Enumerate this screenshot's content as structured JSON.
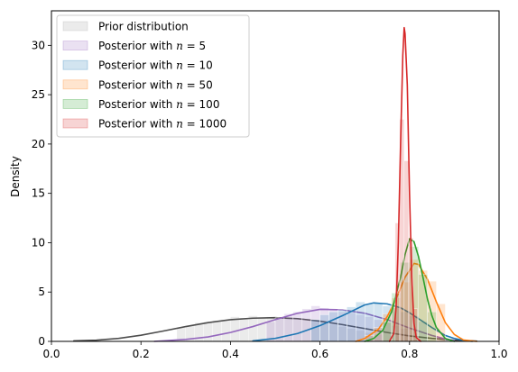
{
  "chart_data": {
    "type": "area",
    "title": "",
    "xlabel": "",
    "ylabel": "Density",
    "xlim": [
      0.0,
      1.0
    ],
    "ylim": [
      0,
      33.5
    ],
    "xticks": [
      "0.0",
      "0.2",
      "0.4",
      "0.6",
      "0.8",
      "1.0"
    ],
    "yticks": [
      "0",
      "5",
      "10",
      "15",
      "20",
      "25",
      "30"
    ],
    "legend_position": "top-left",
    "grid": false,
    "series": [
      {
        "name": "Prior distribution",
        "legend_prefix": "Prior distribution",
        "legend_n": "",
        "line_color": "#4d4d4d",
        "fill_color": "#b0b0b0",
        "kde": [
          [
            0.05,
            0.05
          ],
          [
            0.1,
            0.12
          ],
          [
            0.15,
            0.3
          ],
          [
            0.2,
            0.62
          ],
          [
            0.25,
            1.05
          ],
          [
            0.3,
            1.5
          ],
          [
            0.35,
            1.9
          ],
          [
            0.4,
            2.2
          ],
          [
            0.45,
            2.35
          ],
          [
            0.5,
            2.4
          ],
          [
            0.55,
            2.3
          ],
          [
            0.6,
            2.05
          ],
          [
            0.65,
            1.7
          ],
          [
            0.7,
            1.3
          ],
          [
            0.75,
            0.9
          ],
          [
            0.8,
            0.55
          ],
          [
            0.85,
            0.3
          ],
          [
            0.9,
            0.12
          ],
          [
            0.95,
            0.03
          ]
        ],
        "bins": [
          [
            0.28,
            0.3,
            1.4
          ],
          [
            0.3,
            0.32,
            1.6
          ],
          [
            0.32,
            0.34,
            1.9
          ],
          [
            0.34,
            0.36,
            2.0
          ],
          [
            0.36,
            0.38,
            2.1
          ],
          [
            0.38,
            0.4,
            2.2
          ],
          [
            0.4,
            0.42,
            2.5
          ],
          [
            0.42,
            0.44,
            2.4
          ],
          [
            0.44,
            0.46,
            2.6
          ],
          [
            0.46,
            0.48,
            2.4
          ],
          [
            0.48,
            0.5,
            2.5
          ],
          [
            0.5,
            0.52,
            2.3
          ],
          [
            0.52,
            0.54,
            2.4
          ],
          [
            0.54,
            0.56,
            2.2
          ],
          [
            0.56,
            0.58,
            2.1
          ],
          [
            0.58,
            0.6,
            2.0
          ],
          [
            0.6,
            0.62,
            1.9
          ],
          [
            0.62,
            0.64,
            1.7
          ],
          [
            0.64,
            0.66,
            1.5
          ],
          [
            0.66,
            0.68,
            1.3
          ],
          [
            0.68,
            0.7,
            1.1
          ],
          [
            0.7,
            0.72,
            0.9
          ],
          [
            0.72,
            0.74,
            0.7
          ]
        ]
      },
      {
        "name": "Posterior with n = 5",
        "legend_prefix": "Posterior with ",
        "legend_n": "5",
        "line_color": "#9467bd",
        "fill_color": "#9467bd",
        "kde": [
          [
            0.23,
            0.0
          ],
          [
            0.3,
            0.2
          ],
          [
            0.35,
            0.45
          ],
          [
            0.4,
            0.9
          ],
          [
            0.45,
            1.5
          ],
          [
            0.5,
            2.2
          ],
          [
            0.55,
            2.85
          ],
          [
            0.6,
            3.25
          ],
          [
            0.65,
            3.2
          ],
          [
            0.7,
            2.85
          ],
          [
            0.75,
            2.2
          ],
          [
            0.8,
            1.35
          ],
          [
            0.85,
            0.6
          ],
          [
            0.88,
            0.25
          ],
          [
            0.9,
            0.1
          ]
        ],
        "bins": [
          [
            0.48,
            0.5,
            2.0
          ],
          [
            0.5,
            0.52,
            2.4
          ],
          [
            0.52,
            0.54,
            2.8
          ],
          [
            0.54,
            0.56,
            3.0
          ],
          [
            0.56,
            0.58,
            3.3
          ],
          [
            0.58,
            0.6,
            3.6
          ],
          [
            0.6,
            0.62,
            3.4
          ],
          [
            0.62,
            0.64,
            3.2
          ],
          [
            0.64,
            0.66,
            3.0
          ],
          [
            0.66,
            0.68,
            2.9
          ],
          [
            0.68,
            0.7,
            2.7
          ],
          [
            0.7,
            0.72,
            2.5
          ],
          [
            0.72,
            0.74,
            2.2
          ],
          [
            0.74,
            0.76,
            1.9
          ],
          [
            0.76,
            0.78,
            1.6
          ],
          [
            0.78,
            0.8,
            1.3
          ]
        ]
      },
      {
        "name": "Posterior with n = 10",
        "legend_prefix": "Posterior with ",
        "legend_n": "10",
        "line_color": "#1f77b4",
        "fill_color": "#1f77b4",
        "kde": [
          [
            0.45,
            0.05
          ],
          [
            0.5,
            0.3
          ],
          [
            0.55,
            0.8
          ],
          [
            0.6,
            1.6
          ],
          [
            0.65,
            2.6
          ],
          [
            0.7,
            3.7
          ],
          [
            0.72,
            3.9
          ],
          [
            0.75,
            3.8
          ],
          [
            0.78,
            3.4
          ],
          [
            0.8,
            2.9
          ],
          [
            0.83,
            2.0
          ],
          [
            0.85,
            1.4
          ],
          [
            0.88,
            0.6
          ],
          [
            0.9,
            0.3
          ],
          [
            0.92,
            0.1
          ],
          [
            0.94,
            0.0
          ]
        ],
        "bins": [
          [
            0.58,
            0.6,
            2.2
          ],
          [
            0.6,
            0.62,
            2.7
          ],
          [
            0.62,
            0.64,
            3.0
          ],
          [
            0.64,
            0.66,
            3.2
          ],
          [
            0.66,
            0.68,
            3.5
          ],
          [
            0.68,
            0.7,
            4.0
          ],
          [
            0.7,
            0.72,
            3.8
          ],
          [
            0.72,
            0.74,
            3.9
          ],
          [
            0.74,
            0.76,
            3.6
          ],
          [
            0.76,
            0.78,
            3.4
          ],
          [
            0.78,
            0.8,
            3.0
          ],
          [
            0.8,
            0.82,
            2.6
          ],
          [
            0.82,
            0.84,
            2.0
          ]
        ]
      },
      {
        "name": "Posterior with n = 50",
        "legend_prefix": "Posterior with ",
        "legend_n": "50",
        "line_color": "#ff7f0e",
        "fill_color": "#ff7f0e",
        "kde": [
          [
            0.68,
            0.0
          ],
          [
            0.7,
            0.3
          ],
          [
            0.73,
            1.2
          ],
          [
            0.75,
            2.5
          ],
          [
            0.77,
            4.3
          ],
          [
            0.79,
            6.5
          ],
          [
            0.81,
            7.9
          ],
          [
            0.82,
            7.8
          ],
          [
            0.84,
            6.3
          ],
          [
            0.86,
            4.0
          ],
          [
            0.88,
            1.9
          ],
          [
            0.9,
            0.7
          ],
          [
            0.92,
            0.15
          ],
          [
            0.95,
            0.0
          ]
        ],
        "bins": [
          [
            0.7,
            0.72,
            0.6
          ],
          [
            0.72,
            0.74,
            1.4
          ],
          [
            0.74,
            0.76,
            2.8
          ],
          [
            0.76,
            0.78,
            4.4
          ],
          [
            0.78,
            0.8,
            6.0
          ],
          [
            0.8,
            0.82,
            8.3
          ],
          [
            0.82,
            0.84,
            7.2
          ],
          [
            0.84,
            0.86,
            6.1
          ],
          [
            0.86,
            0.88,
            3.8
          ]
        ]
      },
      {
        "name": "Posterior with n = 100",
        "legend_prefix": "Posterior with ",
        "legend_n": "100",
        "line_color": "#2ca02c",
        "fill_color": "#2ca02c",
        "kde": [
          [
            0.7,
            0.0
          ],
          [
            0.72,
            0.3
          ],
          [
            0.74,
            1.1
          ],
          [
            0.76,
            3.0
          ],
          [
            0.78,
            6.5
          ],
          [
            0.79,
            8.8
          ],
          [
            0.8,
            10.4
          ],
          [
            0.81,
            10.1
          ],
          [
            0.82,
            8.6
          ],
          [
            0.83,
            6.5
          ],
          [
            0.84,
            4.3
          ],
          [
            0.85,
            2.6
          ],
          [
            0.86,
            1.4
          ],
          [
            0.88,
            0.3
          ],
          [
            0.9,
            0.0
          ]
        ],
        "bins": [
          [
            0.74,
            0.76,
            2.0
          ],
          [
            0.76,
            0.78,
            4.9
          ],
          [
            0.78,
            0.8,
            8.0
          ],
          [
            0.8,
            0.82,
            9.6
          ],
          [
            0.82,
            0.84,
            6.8
          ],
          [
            0.84,
            0.86,
            3.0
          ]
        ]
      },
      {
        "name": "Posterior with n = 1000",
        "legend_prefix": "Posterior with ",
        "legend_n": "1000",
        "line_color": "#d62728",
        "fill_color": "#d62728",
        "kde": [
          [
            0.755,
            0.0
          ],
          [
            0.765,
            0.8
          ],
          [
            0.77,
            3.5
          ],
          [
            0.775,
            10.0
          ],
          [
            0.78,
            20.0
          ],
          [
            0.785,
            29.0
          ],
          [
            0.788,
            31.8
          ],
          [
            0.79,
            31.2
          ],
          [
            0.795,
            26.0
          ],
          [
            0.8,
            15.0
          ],
          [
            0.805,
            6.5
          ],
          [
            0.81,
            1.8
          ],
          [
            0.815,
            0.4
          ],
          [
            0.825,
            0.0
          ]
        ],
        "bins": [
          [
            0.768,
            0.778,
            12.0
          ],
          [
            0.778,
            0.788,
            22.5
          ],
          [
            0.788,
            0.798,
            18.3
          ],
          [
            0.798,
            0.808,
            10.5
          ],
          [
            0.808,
            0.818,
            3.3
          ]
        ]
      }
    ]
  }
}
